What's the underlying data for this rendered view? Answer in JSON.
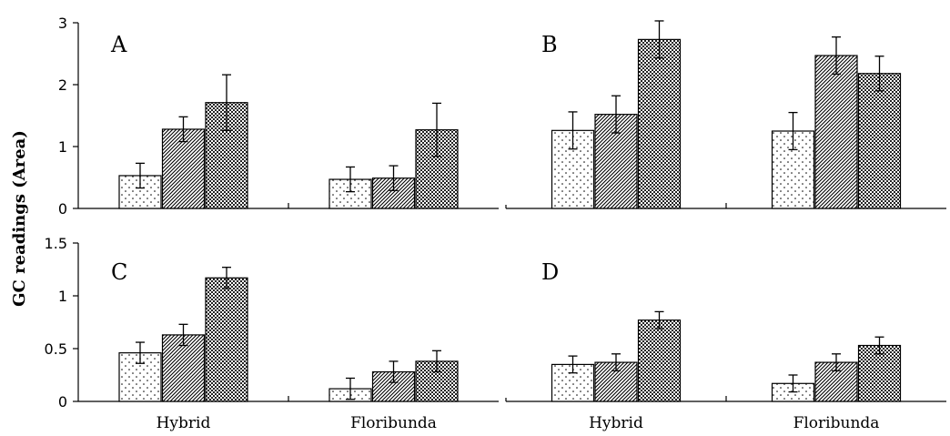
{
  "chart_data": {
    "type": "bar",
    "ylabel": "GC readings (Area)",
    "categories": [
      "Hybrid",
      "Floribunda"
    ],
    "series_patterns": [
      "dots",
      "diagonal",
      "checker"
    ],
    "panels": [
      {
        "label": "A",
        "ylim": [
          0,
          3
        ],
        "yticks": [
          "0",
          "1",
          "2",
          "3"
        ],
        "values": [
          [
            0.53,
            1.28,
            1.71
          ],
          [
            0.47,
            0.49,
            1.27
          ]
        ],
        "errors": [
          [
            0.2,
            0.2,
            0.45
          ],
          [
            0.2,
            0.2,
            0.43
          ]
        ]
      },
      {
        "label": "B",
        "ylim": [
          0,
          3
        ],
        "yticks": [
          "0",
          "1",
          "2",
          "3"
        ],
        "values": [
          [
            1.26,
            1.52,
            2.73
          ],
          [
            1.25,
            2.47,
            2.18
          ]
        ],
        "errors": [
          [
            0.3,
            0.3,
            0.3
          ],
          [
            0.3,
            0.3,
            0.28
          ]
        ]
      },
      {
        "label": "C",
        "ylim": [
          0,
          1.5
        ],
        "yticks": [
          "0",
          "0.5",
          "1",
          "1.5"
        ],
        "values": [
          [
            0.46,
            0.63,
            1.17
          ],
          [
            0.12,
            0.28,
            0.38
          ]
        ],
        "errors": [
          [
            0.1,
            0.1,
            0.1
          ],
          [
            0.1,
            0.1,
            0.1
          ]
        ]
      },
      {
        "label": "D",
        "ylim": [
          0,
          1.5
        ],
        "yticks": [
          "0",
          "0.5",
          "1",
          "1.5"
        ],
        "values": [
          [
            0.35,
            0.37,
            0.77
          ],
          [
            0.17,
            0.37,
            0.53
          ]
        ],
        "errors": [
          [
            0.08,
            0.08,
            0.08
          ],
          [
            0.08,
            0.08,
            0.08
          ]
        ]
      }
    ]
  }
}
